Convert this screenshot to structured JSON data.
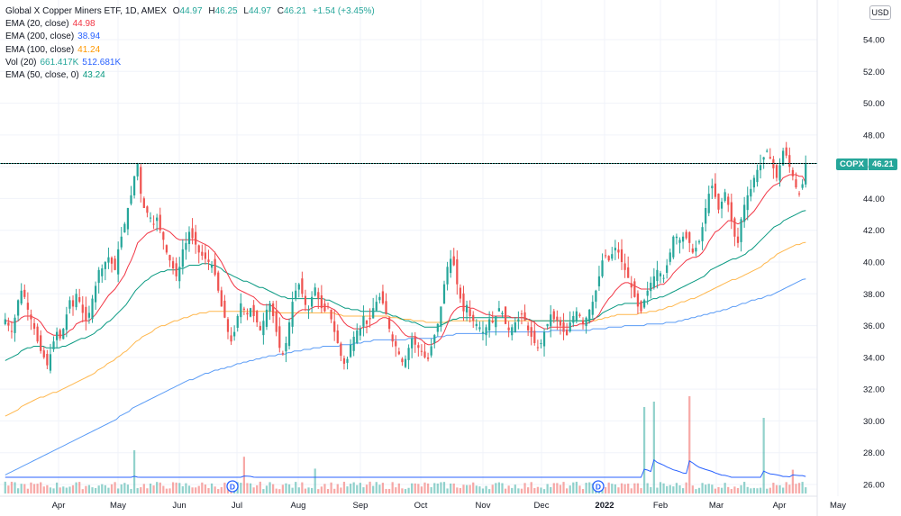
{
  "legend": {
    "title": "Global X Copper Miners ETF, 1D, AMEX",
    "ohlc": {
      "o_label": "O",
      "o": "44.97",
      "h_label": "H",
      "h": "46.25",
      "l_label": "L",
      "l": "44.97",
      "c_label": "C",
      "c": "46.21",
      "chg": "+1.54 (+3.45%)"
    },
    "indicators": [
      {
        "label": "EMA (20, close)",
        "value": "44.98",
        "color": "#f23645"
      },
      {
        "label": "EMA (200, close)",
        "value": "38.94",
        "color": "#2962ff"
      },
      {
        "label": "EMA (100, close)",
        "value": "41.24",
        "color": "#ff9800"
      },
      {
        "label": "Vol (20)",
        "value": "661.417K",
        "value2": "512.681K",
        "color": "#26a69a"
      },
      {
        "label": "EMA (50, close, 0)",
        "value": "43.24",
        "color": "#089981"
      }
    ]
  },
  "currency": "USD",
  "price_tag": {
    "symbol": "COPX",
    "value": "46.21"
  },
  "chart_data": {
    "type": "candlestick",
    "symbol": "COPX",
    "ylim": [
      25.5,
      56
    ],
    "y_ticks": [
      "54.00",
      "52.00",
      "50.00",
      "48.00",
      "46.00",
      "44.00",
      "42.00",
      "40.00",
      "38.00",
      "36.00",
      "34.00",
      "32.00",
      "30.00",
      "28.00",
      "26.00"
    ],
    "x_ticks": [
      "Apr",
      "May",
      "Jun",
      "Jul",
      "Aug",
      "Sep",
      "Oct",
      "Nov",
      "Dec",
      "2022",
      "Feb",
      "Mar",
      "Apr",
      "May"
    ],
    "horizontal_line": 46.21,
    "dividend_markers": [
      "D",
      "D"
    ],
    "series_colors": {
      "up": "#26a69a",
      "down": "#ef5350",
      "ema20": "#f23645",
      "ema50": "#089981",
      "ema100": "#ffb74d",
      "ema200": "#5b9cf6",
      "vol_ma": "#2962ff"
    },
    "closes": [
      36.4,
      36.0,
      35.6,
      36.5,
      37.6,
      38.2,
      37.8,
      37.0,
      36.4,
      35.8,
      35.0,
      34.4,
      34.0,
      33.5,
      34.2,
      35.0,
      35.6,
      35.2,
      35.8,
      36.7,
      37.6,
      37.2,
      38.0,
      37.5,
      36.8,
      36.3,
      36.8,
      37.7,
      38.5,
      39.5,
      39.6,
      40.0,
      40.3,
      39.9,
      39.5,
      40.8,
      41.6,
      42.4,
      43.4,
      44.2,
      45.4,
      46.2,
      44.3,
      43.4,
      43.1,
      42.8,
      42.4,
      42.8,
      42.0,
      41.4,
      40.6,
      40.1,
      39.6,
      39.1,
      39.7,
      40.8,
      41.2,
      41.9,
      41.5,
      41.1,
      40.6,
      40.4,
      40.2,
      40.0,
      39.8,
      39.2,
      38.2,
      37.2,
      36.5,
      35.6,
      35.0,
      35.6,
      36.6,
      37.4,
      37.0,
      36.7,
      37.1,
      36.6,
      36.2,
      35.7,
      36.3,
      37.0,
      37.4,
      36.6,
      35.6,
      34.6,
      34.2,
      34.9,
      36.2,
      37.5,
      38.2,
      38.6,
      38.0,
      37.3,
      37.0,
      37.8,
      38.4,
      37.7,
      37.1,
      36.9,
      37.2,
      36.4,
      35.6,
      34.9,
      34.1,
      33.6,
      33.9,
      34.8,
      35.3,
      35.7,
      35.8,
      36.6,
      36.1,
      36.4,
      37.1,
      37.5,
      37.8,
      37.4,
      36.7,
      35.8,
      35.0,
      34.7,
      34.2,
      33.7,
      33.9,
      34.6,
      35.2,
      34.8,
      34.6,
      34.4,
      34.0,
      33.9,
      34.7,
      35.4,
      36.1,
      37.2,
      38.6,
      39.7,
      40.2,
      39.8,
      38.6,
      37.7,
      36.9,
      37.3,
      36.6,
      36.3,
      36.1,
      35.9,
      35.6,
      35.9,
      36.4,
      36.2,
      36.6,
      37.1,
      36.8,
      36.1,
      35.7,
      35.9,
      36.2,
      36.4,
      36.7,
      36.3,
      35.7,
      35.3,
      34.9,
      34.6,
      34.9,
      35.6,
      36.1,
      36.7,
      36.4,
      36.3,
      36.0,
      35.6,
      35.4,
      36.2,
      36.6,
      36.9,
      36.6,
      36.1,
      36.5,
      37.0,
      37.5,
      38.2,
      39.1,
      40.1,
      40.4,
      40.1,
      40.5,
      40.9,
      40.6,
      40.0,
      39.5,
      39.0,
      38.4,
      37.8,
      37.2,
      36.9,
      37.6,
      38.2,
      38.7,
      39.1,
      39.5,
      39.3,
      39.0,
      39.8,
      40.6,
      41.6,
      41.6,
      41.4,
      41.6,
      41.5,
      41.2,
      40.6,
      40.9,
      41.3,
      42.2,
      43.4,
      44.3,
      44.8,
      44.1,
      43.3,
      43.8,
      44.4,
      43.6,
      42.6,
      41.6,
      41.2,
      42.7,
      43.6,
      44.2,
      44.6,
      45.3,
      45.8,
      46.1,
      46.6,
      47.0,
      46.5,
      45.9,
      45.3,
      46.1,
      47.0,
      46.7,
      46.0,
      45.4,
      44.7,
      44.3,
      44.9,
      46.2
    ],
    "ema20": [
      36.3,
      36.3,
      36.2,
      36.2,
      36.3,
      36.5,
      36.6,
      36.6,
      36.6,
      36.5,
      36.4,
      36.2,
      35.9,
      35.6,
      35.5,
      35.4,
      35.4,
      35.4,
      35.4,
      35.5,
      35.7,
      35.8,
      36.1,
      36.2,
      36.3,
      36.3,
      36.3,
      36.5,
      36.7,
      37.0,
      37.3,
      37.6,
      37.9,
      38.1,
      38.3,
      38.6,
      38.9,
      39.2,
      39.7,
      40.1,
      40.6,
      41.2,
      41.4,
      41.6,
      41.8,
      41.9,
      42.0,
      42.1,
      42.1,
      42.1,
      42.0,
      41.9,
      41.7,
      41.5,
      41.4,
      41.4,
      41.4,
      41.4,
      41.4,
      41.4,
      41.3,
      41.2,
      41.1,
      41.0,
      40.8,
      40.6,
      40.3,
      40.0,
      39.6,
      39.2,
      38.8,
      38.5,
      38.3,
      38.2,
      38.1,
      38.0,
      37.9,
      37.8,
      37.6,
      37.4,
      37.3,
      37.3,
      37.3,
      37.2,
      37.0,
      36.8,
      36.5,
      36.4,
      36.4,
      36.5,
      36.7,
      36.9,
      37.0,
      37.0,
      37.0,
      37.1,
      37.2,
      37.2,
      37.2,
      37.2,
      37.2,
      37.1,
      37.0,
      36.8,
      36.5,
      36.2,
      36.0,
      35.9,
      35.8,
      35.8,
      35.8,
      35.9,
      35.9,
      36.0,
      36.1,
      36.2,
      36.4,
      36.5,
      36.5,
      36.4,
      36.3,
      36.1,
      35.9,
      35.6,
      35.4,
      35.3,
      35.3,
      35.3,
      35.2,
      35.1,
      34.9,
      34.8,
      34.8,
      34.9,
      35.0,
      35.2,
      35.6,
      36.1,
      36.6,
      36.9,
      37.1,
      37.2,
      37.2,
      37.2,
      37.1,
      37.1,
      37.0,
      36.9,
      36.8,
      36.7,
      36.7,
      36.6,
      36.6,
      36.6,
      36.6,
      36.6,
      36.6,
      36.5,
      36.5,
      36.5,
      36.5,
      36.5,
      36.4,
      36.3,
      36.2,
      36.0,
      35.9,
      35.8,
      35.8,
      35.9,
      35.9,
      35.9,
      35.9,
      35.9,
      35.9,
      35.9,
      36.0,
      36.0,
      36.1,
      36.1,
      36.1,
      36.2,
      36.3,
      36.5,
      36.7,
      37.1,
      37.4,
      37.7,
      37.9,
      38.2,
      38.4,
      38.6,
      38.7,
      38.7,
      38.6,
      38.5,
      38.4,
      38.3,
      38.3,
      38.3,
      38.3,
      38.4,
      38.5,
      38.6,
      38.6,
      38.8,
      39.0,
      39.3,
      39.5,
      39.7,
      39.9,
      40.1,
      40.2,
      40.3,
      40.3,
      40.4,
      40.6,
      40.9,
      41.3,
      41.6,
      41.9,
      42.0,
      42.2,
      42.4,
      42.6,
      42.6,
      42.5,
      42.4,
      42.5,
      42.6,
      42.8,
      43.0,
      43.2,
      43.5,
      43.8,
      44.1,
      44.4,
      44.6,
      44.8,
      44.9,
      45.0,
      45.3,
      45.4,
      45.5,
      45.5,
      45.5,
      45.4,
      45.4,
      44.98
    ],
    "ema50": [
      33.8,
      33.9,
      34.0,
      34.1,
      34.2,
      34.4,
      34.5,
      34.6,
      34.6,
      34.7,
      34.7,
      34.7,
      34.7,
      34.6,
      34.6,
      34.6,
      34.6,
      34.6,
      34.7,
      34.7,
      34.8,
      34.9,
      35.0,
      35.1,
      35.2,
      35.2,
      35.3,
      35.4,
      35.5,
      35.7,
      35.8,
      36.0,
      36.2,
      36.3,
      36.5,
      36.7,
      36.9,
      37.1,
      37.3,
      37.6,
      37.9,
      38.2,
      38.4,
      38.6,
      38.8,
      38.9,
      39.1,
      39.2,
      39.3,
      39.4,
      39.4,
      39.5,
      39.5,
      39.5,
      39.5,
      39.6,
      39.6,
      39.7,
      39.8,
      39.8,
      39.8,
      39.8,
      39.9,
      39.9,
      39.9,
      39.8,
      39.8,
      39.7,
      39.6,
      39.4,
      39.3,
      39.2,
      39.1,
      39.0,
      38.9,
      38.8,
      38.8,
      38.7,
      38.6,
      38.5,
      38.4,
      38.4,
      38.3,
      38.2,
      38.1,
      38.0,
      37.9,
      37.8,
      37.8,
      37.7,
      37.7,
      37.7,
      37.7,
      37.7,
      37.7,
      37.7,
      37.7,
      37.7,
      37.7,
      37.7,
      37.7,
      37.6,
      37.6,
      37.5,
      37.4,
      37.3,
      37.2,
      37.1,
      37.1,
      37.0,
      37.0,
      37.0,
      36.9,
      36.9,
      36.9,
      36.9,
      36.9,
      36.9,
      36.9,
      36.8,
      36.8,
      36.7,
      36.6,
      36.6,
      36.5,
      36.4,
      36.3,
      36.3,
      36.2,
      36.2,
      36.1,
      36.0,
      35.9,
      35.9,
      35.9,
      35.9,
      35.9,
      36.0,
      36.1,
      36.2,
      36.3,
      36.4,
      36.4,
      36.5,
      36.5,
      36.5,
      36.5,
      36.5,
      36.5,
      36.5,
      36.5,
      36.5,
      36.5,
      36.5,
      36.5,
      36.5,
      36.5,
      36.5,
      36.5,
      36.5,
      36.5,
      36.5,
      36.5,
      36.5,
      36.4,
      36.4,
      36.3,
      36.3,
      36.3,
      36.3,
      36.3,
      36.3,
      36.3,
      36.3,
      36.3,
      36.3,
      36.3,
      36.3,
      36.3,
      36.3,
      36.3,
      36.3,
      36.3,
      36.3,
      36.4,
      36.4,
      36.5,
      36.6,
      36.8,
      36.9,
      37.0,
      37.1,
      37.2,
      37.3,
      37.3,
      37.4,
      37.4,
      37.4,
      37.4,
      37.4,
      37.4,
      37.5,
      37.5,
      37.6,
      37.7,
      37.7,
      37.8,
      37.8,
      37.9,
      38.0,
      38.1,
      38.2,
      38.3,
      38.4,
      38.5,
      38.6,
      38.7,
      38.8,
      38.9,
      39.0,
      39.1,
      39.3,
      39.5,
      39.6,
      39.7,
      39.8,
      39.9,
      40.0,
      40.1,
      40.2,
      40.2,
      40.3,
      40.4,
      40.5,
      40.7,
      40.8,
      41.0,
      41.2,
      41.4,
      41.6,
      41.8,
      42.0,
      42.2,
      42.3,
      42.4,
      42.6,
      42.7,
      42.8,
      42.9,
      43.0,
      43.1,
      43.2,
      43.24
    ],
    "ema100": [
      30.3,
      30.4,
      30.5,
      30.6,
      30.7,
      30.9,
      31.0,
      31.1,
      31.2,
      31.3,
      31.4,
      31.5,
      31.5,
      31.6,
      31.7,
      31.8,
      31.8,
      31.9,
      32.0,
      32.1,
      32.2,
      32.3,
      32.4,
      32.5,
      32.6,
      32.7,
      32.8,
      32.9,
      33.0,
      33.2,
      33.3,
      33.4,
      33.6,
      33.7,
      33.8,
      34.0,
      34.1,
      34.3,
      34.4,
      34.6,
      34.8,
      35.0,
      35.1,
      35.3,
      35.4,
      35.5,
      35.6,
      35.8,
      35.9,
      36.0,
      36.0,
      36.1,
      36.2,
      36.3,
      36.3,
      36.4,
      36.5,
      36.5,
      36.6,
      36.7,
      36.7,
      36.8,
      36.8,
      36.8,
      36.9,
      36.9,
      36.9,
      36.9,
      36.9,
      36.9,
      36.9,
      36.9,
      36.9,
      36.9,
      36.9,
      36.9,
      36.9,
      36.9,
      36.9,
      36.9,
      36.9,
      36.9,
      36.9,
      36.9,
      36.9,
      36.8,
      36.8,
      36.8,
      36.8,
      36.8,
      36.8,
      36.8,
      36.8,
      36.8,
      36.8,
      36.8,
      36.8,
      36.8,
      36.8,
      36.8,
      36.8,
      36.8,
      36.8,
      36.8,
      36.7,
      36.7,
      36.6,
      36.6,
      36.6,
      36.6,
      36.6,
      36.6,
      36.6,
      36.6,
      36.6,
      36.6,
      36.6,
      36.6,
      36.6,
      36.6,
      36.6,
      36.5,
      36.5,
      36.5,
      36.4,
      36.4,
      36.4,
      36.4,
      36.3,
      36.3,
      36.3,
      36.3,
      36.2,
      36.2,
      36.2,
      36.2,
      36.2,
      36.2,
      36.2,
      36.3,
      36.3,
      36.3,
      36.3,
      36.3,
      36.3,
      36.3,
      36.3,
      36.3,
      36.3,
      36.3,
      36.3,
      36.3,
      36.3,
      36.3,
      36.3,
      36.3,
      36.3,
      36.3,
      36.3,
      36.3,
      36.3,
      36.3,
      36.3,
      36.3,
      36.3,
      36.3,
      36.3,
      36.3,
      36.3,
      36.3,
      36.3,
      36.3,
      36.3,
      36.3,
      36.3,
      36.3,
      36.3,
      36.3,
      36.3,
      36.3,
      36.3,
      36.3,
      36.3,
      36.3,
      36.3,
      36.3,
      36.4,
      36.4,
      36.5,
      36.5,
      36.6,
      36.6,
      36.7,
      36.7,
      36.7,
      36.7,
      36.7,
      36.7,
      36.7,
      36.8,
      36.8,
      36.8,
      36.9,
      36.9,
      36.9,
      37.0,
      37.0,
      37.1,
      37.2,
      37.2,
      37.3,
      37.4,
      37.5,
      37.5,
      37.6,
      37.7,
      37.7,
      37.8,
      37.9,
      38.0,
      38.1,
      38.2,
      38.3,
      38.4,
      38.5,
      38.6,
      38.7,
      38.8,
      38.9,
      38.9,
      39.0,
      39.1,
      39.2,
      39.3,
      39.4,
      39.5,
      39.6,
      39.7,
      39.9,
      40.0,
      40.2,
      40.3,
      40.5,
      40.6,
      40.7,
      40.8,
      40.9,
      41.0,
      41.1,
      41.1,
      41.2,
      41.24
    ],
    "ema200": [
      26.6,
      26.7,
      26.8,
      26.9,
      27.0,
      27.1,
      27.2,
      27.3,
      27.4,
      27.5,
      27.6,
      27.7,
      27.8,
      27.9,
      28.0,
      28.1,
      28.2,
      28.3,
      28.4,
      28.5,
      28.6,
      28.7,
      28.8,
      28.9,
      29.0,
      29.1,
      29.2,
      29.3,
      29.4,
      29.5,
      29.6,
      29.7,
      29.8,
      29.9,
      30.0,
      30.1,
      30.3,
      30.4,
      30.5,
      30.6,
      30.8,
      30.9,
      31.0,
      31.1,
      31.2,
      31.3,
      31.4,
      31.5,
      31.6,
      31.7,
      31.8,
      31.9,
      32.0,
      32.1,
      32.2,
      32.3,
      32.4,
      32.5,
      32.6,
      32.6,
      32.7,
      32.8,
      32.9,
      33.0,
      33.0,
      33.1,
      33.2,
      33.2,
      33.3,
      33.3,
      33.4,
      33.4,
      33.5,
      33.6,
      33.6,
      33.7,
      33.7,
      33.8,
      33.8,
      33.9,
      33.9,
      34.0,
      34.0,
      34.1,
      34.1,
      34.1,
      34.2,
      34.2,
      34.2,
      34.3,
      34.3,
      34.4,
      34.4,
      34.4,
      34.5,
      34.5,
      34.5,
      34.6,
      34.6,
      34.6,
      34.7,
      34.7,
      34.7,
      34.7,
      34.7,
      34.7,
      34.8,
      34.8,
      34.8,
      34.8,
      34.9,
      34.9,
      34.9,
      35.0,
      35.0,
      35.0,
      35.1,
      35.1,
      35.1,
      35.1,
      35.1,
      35.1,
      35.1,
      35.1,
      35.1,
      35.1,
      35.1,
      35.2,
      35.2,
      35.2,
      35.2,
      35.2,
      35.2,
      35.2,
      35.2,
      35.2,
      35.3,
      35.3,
      35.3,
      35.4,
      35.4,
      35.4,
      35.5,
      35.5,
      35.5,
      35.5,
      35.5,
      35.5,
      35.5,
      35.5,
      35.5,
      35.5,
      35.6,
      35.6,
      35.6,
      35.6,
      35.6,
      35.6,
      35.6,
      35.6,
      35.6,
      35.6,
      35.6,
      35.6,
      35.6,
      35.6,
      35.6,
      35.6,
      35.6,
      35.6,
      35.6,
      35.6,
      35.7,
      35.7,
      35.7,
      35.7,
      35.7,
      35.7,
      35.7,
      35.7,
      35.7,
      35.7,
      35.7,
      35.7,
      35.7,
      35.8,
      35.8,
      35.8,
      35.8,
      35.8,
      35.9,
      35.9,
      35.9,
      35.9,
      35.9,
      36.0,
      36.0,
      36.0,
      36.0,
      36.0,
      36.0,
      36.0,
      36.1,
      36.1,
      36.1,
      36.1,
      36.1,
      36.1,
      36.2,
      36.2,
      36.2,
      36.2,
      36.3,
      36.3,
      36.4,
      36.4,
      36.5,
      36.5,
      36.6,
      36.6,
      36.7,
      36.7,
      36.8,
      36.8,
      36.9,
      36.9,
      37.0,
      37.0,
      37.1,
      37.2,
      37.2,
      37.3,
      37.4,
      37.4,
      37.5,
      37.6,
      37.6,
      37.7,
      37.7,
      37.8,
      37.9,
      37.9,
      38.0,
      38.1,
      38.2,
      38.3,
      38.4,
      38.5,
      38.6,
      38.7,
      38.8,
      38.9,
      38.94
    ]
  }
}
